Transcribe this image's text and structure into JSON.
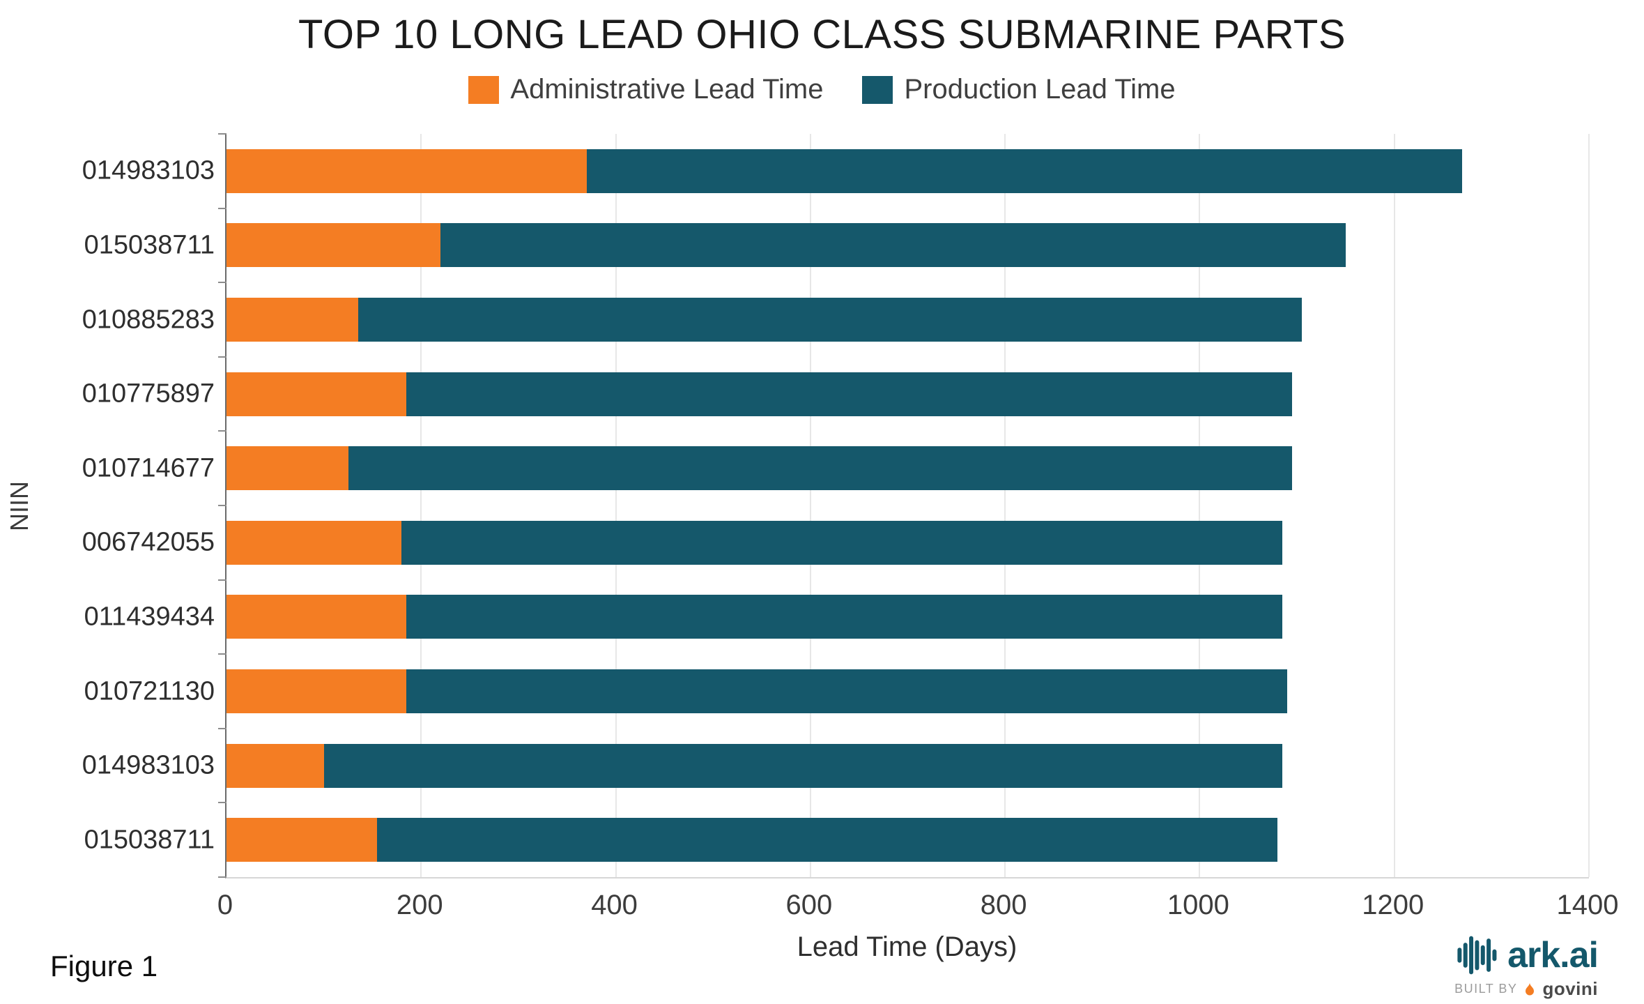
{
  "title": "TOP 10 LONG LEAD OHIO CLASS SUBMARINE PARTS",
  "legend": [
    {
      "label": "Administrative Lead Time",
      "color": "#F47D23"
    },
    {
      "label": "Production Lead Time",
      "color": "#15586B"
    }
  ],
  "figure_label": "Figure 1",
  "branding": {
    "logo_text": "ark.ai",
    "built_by": "BUILT BY",
    "builder": "govini",
    "logo_color": "#14586B",
    "flame_color": "#F47D23"
  },
  "chart_data": {
    "type": "bar",
    "orientation": "horizontal",
    "stacked": true,
    "title": "TOP 10 LONG LEAD OHIO CLASS SUBMARINE PARTS",
    "xlabel": "Lead Time (Days)",
    "ylabel": "NIIN",
    "xlim": [
      0,
      1400
    ],
    "xtick_step": 200,
    "grid": true,
    "legend_position": "top",
    "categories": [
      "014983103",
      "015038711",
      "010885283",
      "010775897",
      "010714677",
      "006742055",
      "011439434",
      "010721130",
      "014983103",
      "015038711"
    ],
    "series": [
      {
        "name": "Administrative Lead Time",
        "color": "#F47D23",
        "values": [
          370,
          220,
          135,
          185,
          125,
          180,
          185,
          185,
          100,
          155
        ]
      },
      {
        "name": "Production Lead Time",
        "color": "#15586B",
        "values": [
          900,
          930,
          970,
          910,
          970,
          905,
          900,
          905,
          985,
          925
        ]
      }
    ],
    "totals": [
      1270,
      1150,
      1105,
      1095,
      1095,
      1085,
      1085,
      1090,
      1085,
      1080
    ]
  }
}
